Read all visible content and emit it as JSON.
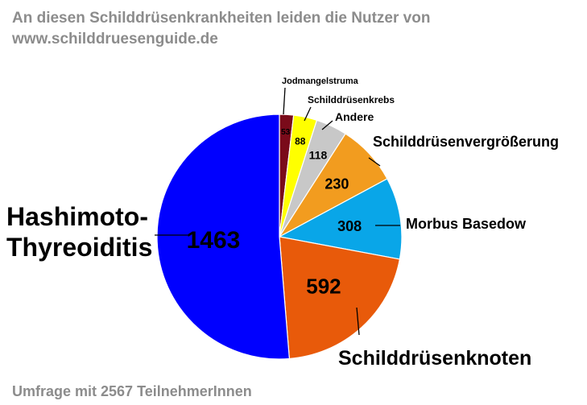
{
  "header": {
    "title": "An diesen Schilddrüsenkrankheiten leiden die Nutzer von www.schilddruesenguide.de"
  },
  "footer": {
    "note": "Umfrage mit 2567 TeilnehmerInnen"
  },
  "chart_data": {
    "type": "pie",
    "title": "An diesen Schilddrüsenkrankheiten leiden die Nutzer von www.schilddruesenguide.de",
    "start_angle_deg": 0,
    "direction": "clockwise",
    "legend": "none (outside labels with leader lines)",
    "slices": [
      {
        "label": "Jodmangelstruma",
        "value": 53,
        "color": "#7a0b1a"
      },
      {
        "label": "Schilddrüsenkrebs",
        "value": 88,
        "color": "#ffff00"
      },
      {
        "label": "Andere",
        "value": 118,
        "color": "#c8c8c8"
      },
      {
        "label": "Schilddrüsenvergrößerung",
        "value": 230,
        "color": "#f29c1f"
      },
      {
        "label": "Morbus Basedow",
        "value": 308,
        "color": "#09a6e8"
      },
      {
        "label": "Schilddrüsenknoten",
        "value": 592,
        "color": "#e85a0a"
      },
      {
        "label": "Hashimoto-Thyreoiditis",
        "value": 1463,
        "color": "#0000ff"
      }
    ]
  }
}
